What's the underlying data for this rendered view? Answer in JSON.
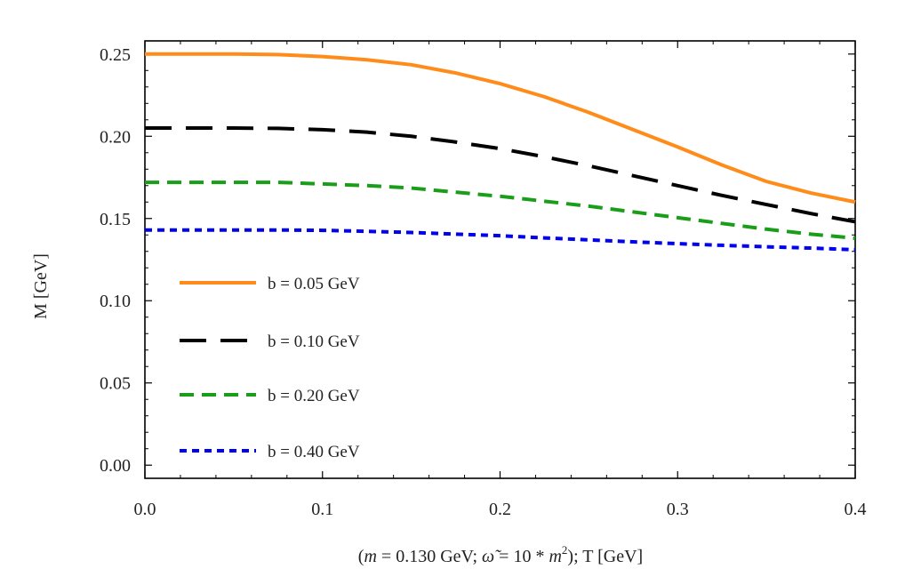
{
  "chart_data": {
    "type": "line",
    "title": "",
    "xlabel": "(m = 0.130 GeV; ω̃ = 10 * m²); T [GeV]",
    "xlabel_parts": {
      "open": "(",
      "m_symbol": "m",
      "m_value": " = 0.130 GeV; ",
      "omega_symbol": "ω̃",
      "omega_value": " = 10 * ",
      "m2_symbol": "m",
      "m2_exponent": "2",
      "close": "); T [GeV]"
    },
    "ylabel": "M [GeV]",
    "xlim": [
      0,
      0.4
    ],
    "ylim": [
      -0.008,
      0.258
    ],
    "xticks": [
      0.0,
      0.1,
      0.2,
      0.3,
      0.4
    ],
    "xtick_labels": [
      "0.0",
      "0.1",
      "0.2",
      "0.3",
      "0.4"
    ],
    "yticks": [
      0.0,
      0.05,
      0.1,
      0.15,
      0.2,
      0.25
    ],
    "ytick_labels": [
      "0.00",
      "0.05",
      "0.10",
      "0.15",
      "0.20",
      "0.25"
    ],
    "grid": false,
    "legend_position": "left",
    "x": [
      0,
      0.025,
      0.05,
      0.075,
      0.1,
      0.125,
      0.15,
      0.175,
      0.2,
      0.225,
      0.25,
      0.275,
      0.3,
      0.325,
      0.35,
      0.375,
      0.4
    ],
    "series": [
      {
        "name": "b = 0.05 GeV",
        "color": "#ff8c1a",
        "dash": "solid",
        "values": [
          0.25,
          0.25,
          0.25,
          0.2497,
          0.2485,
          0.2465,
          0.2435,
          0.2385,
          0.232,
          0.224,
          0.2145,
          0.204,
          0.1935,
          0.1825,
          0.1725,
          0.1655,
          0.16
        ]
      },
      {
        "name": "b = 0.10 GeV",
        "color": "#000000",
        "dash": "long",
        "values": [
          0.205,
          0.205,
          0.205,
          0.2048,
          0.204,
          0.2025,
          0.2,
          0.1965,
          0.1925,
          0.1875,
          0.182,
          0.176,
          0.17,
          0.164,
          0.1585,
          0.153,
          0.148
        ]
      },
      {
        "name": "b = 0.20 GeV",
        "color": "#1a9e1a",
        "dash": "medium",
        "values": [
          0.172,
          0.172,
          0.172,
          0.172,
          0.171,
          0.17,
          0.1685,
          0.166,
          0.1635,
          0.1605,
          0.1575,
          0.154,
          0.1505,
          0.147,
          0.1435,
          0.1405,
          0.138
        ]
      },
      {
        "name": "b = 0.40 GeV",
        "color": "#0000ee",
        "dash": "short",
        "values": [
          0.143,
          0.143,
          0.143,
          0.143,
          0.1428,
          0.1422,
          0.1415,
          0.1405,
          0.1395,
          0.1382,
          0.137,
          0.1358,
          0.1347,
          0.1337,
          0.1328,
          0.132,
          0.131
        ]
      }
    ]
  }
}
